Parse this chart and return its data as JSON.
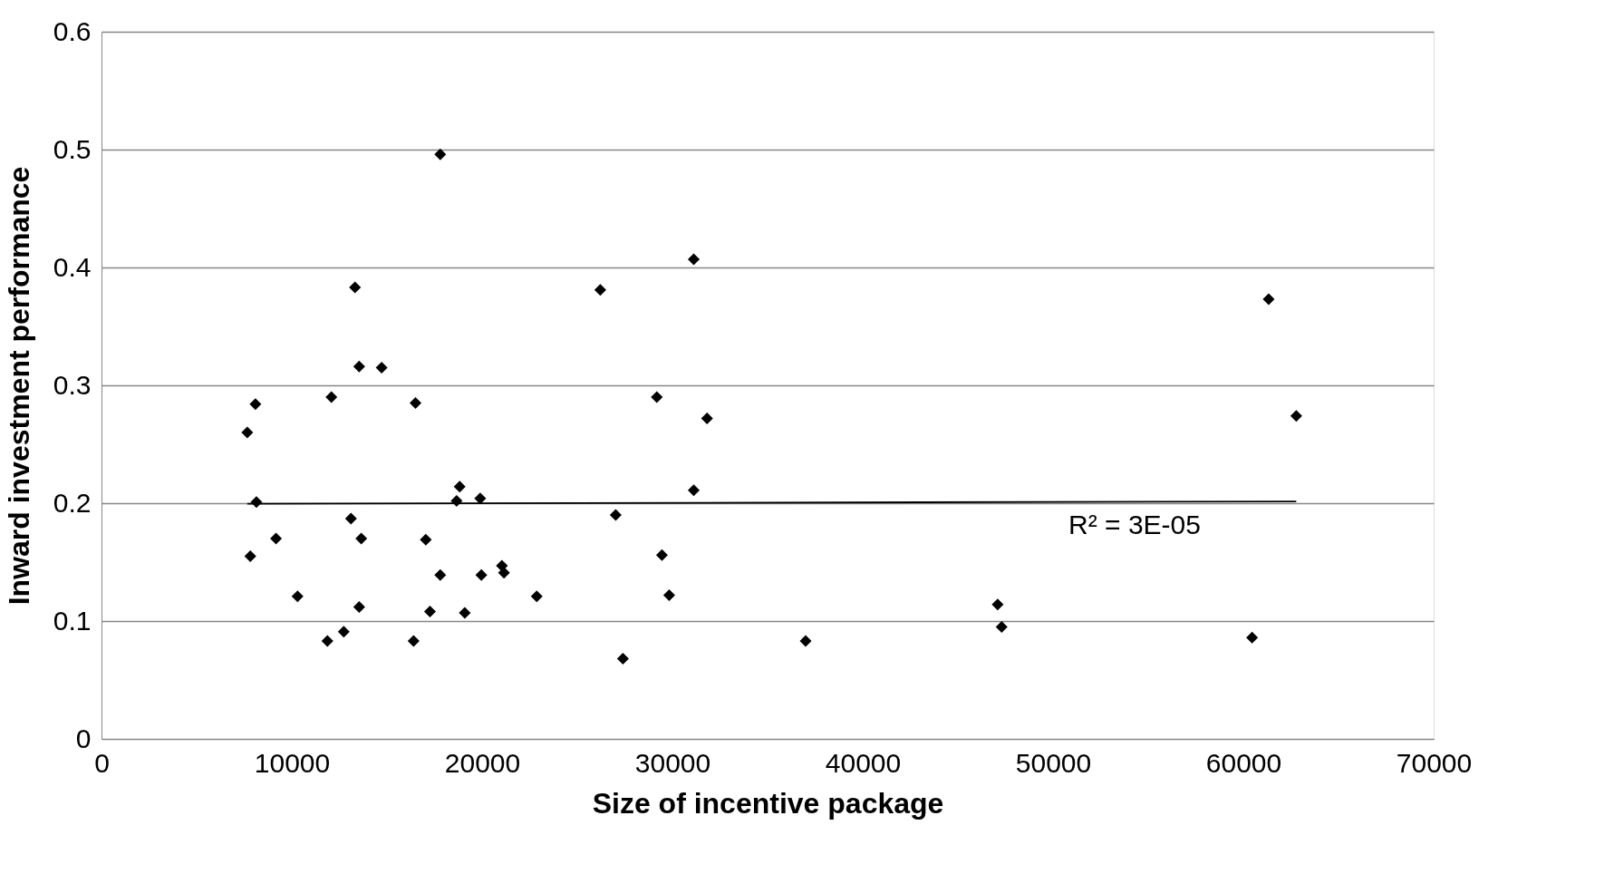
{
  "chart_data": {
    "type": "scatter",
    "xlabel": "Size of incentive package",
    "ylabel": "Inward investment performance",
    "xlim": [
      0,
      70000
    ],
    "xticks": [
      0,
      10000,
      20000,
      30000,
      40000,
      50000,
      60000,
      70000
    ],
    "ylim": [
      0,
      0.6
    ],
    "yticks": [
      0,
      0.1,
      0.2,
      0.3,
      0.4,
      0.5,
      0.6
    ],
    "grid": "y",
    "series": [
      {
        "marker": "diamond",
        "color": "#000000",
        "x": [
          7660,
          8090,
          7820,
          8140,
          9170,
          10300,
          11870,
          12080,
          12730,
          13110,
          13320,
          13540,
          13650,
          13540,
          14720,
          16400,
          16500,
          17040,
          17260,
          17800,
          17800,
          18660,
          18820,
          19090,
          19900,
          19960,
          21040,
          21150,
          22870,
          26210,
          27020,
          27400,
          29180,
          29450,
          29830,
          31120,
          31120,
          31820,
          37000,
          47090,
          47300,
          60460,
          61330,
          62780
        ],
        "values": [
          0.26,
          0.284,
          0.155,
          0.201,
          0.17,
          0.121,
          0.083,
          0.29,
          0.091,
          0.187,
          0.383,
          0.316,
          0.17,
          0.112,
          0.315,
          0.083,
          0.285,
          0.169,
          0.108,
          0.139,
          0.496,
          0.202,
          0.214,
          0.107,
          0.204,
          0.139,
          0.147,
          0.141,
          0.121,
          0.381,
          0.19,
          0.068,
          0.29,
          0.156,
          0.122,
          0.407,
          0.211,
          0.272,
          0.083,
          0.114,
          0.095,
          0.086,
          0.373,
          0.274
        ]
      },
      {
        "type": "line",
        "color": "#000000",
        "line_style": "solid",
        "x": [
          7660,
          62780
        ],
        "values": [
          0.1995,
          0.2015
        ]
      }
    ],
    "annotations": [
      "R² = 3E-05"
    ]
  }
}
